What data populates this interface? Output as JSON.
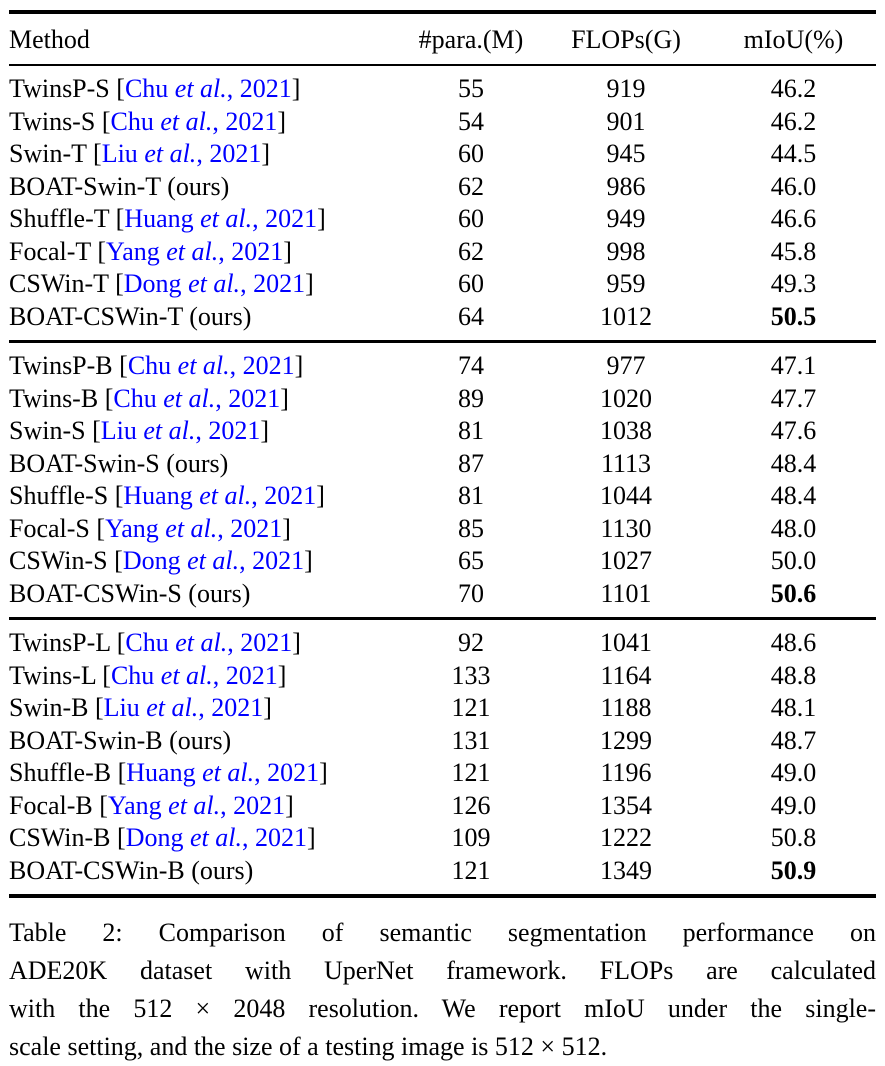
{
  "page": {
    "background_color": "#ffffff",
    "text_color": "#000000",
    "citation_color": "#0000FF"
  },
  "table": {
    "columns": [
      "Method",
      "#para.(M)",
      "FLOPs(G)",
      "mIoU(%)"
    ],
    "groups": [
      {
        "rows": [
          {
            "name": "TwinsP-S",
            "cite": {
              "author": "Chu",
              "etal": "et al.",
              "year": "2021"
            },
            "para": "55",
            "flops": "919",
            "miou": "46.2",
            "miou_bold": false
          },
          {
            "name": "Twins-S",
            "cite": {
              "author": "Chu",
              "etal": "et al.",
              "year": "2021"
            },
            "para": "54",
            "flops": "901",
            "miou": "46.2",
            "miou_bold": false
          },
          {
            "name": "Swin-T",
            "cite": {
              "author": "Liu",
              "etal": "et al.",
              "year": "2021"
            },
            "para": "60",
            "flops": "945",
            "miou": "44.5",
            "miou_bold": false
          },
          {
            "name": "BOAT-Swin-T (ours)",
            "cite": null,
            "para": "62",
            "flops": "986",
            "miou": "46.0",
            "miou_bold": false
          },
          {
            "name": "Shuffle-T",
            "cite": {
              "author": "Huang",
              "etal": "et al.",
              "year": "2021"
            },
            "para": "60",
            "flops": "949",
            "miou": "46.6",
            "miou_bold": false
          },
          {
            "name": "Focal-T",
            "cite": {
              "author": "Yang",
              "etal": "et al.",
              "year": "2021"
            },
            "para": "62",
            "flops": "998",
            "miou": "45.8",
            "miou_bold": false
          },
          {
            "name": "CSWin-T",
            "cite": {
              "author": "Dong",
              "etal": "et al.",
              "year": "2021"
            },
            "para": "60",
            "flops": "959",
            "miou": "49.3",
            "miou_bold": false
          },
          {
            "name": "BOAT-CSWin-T (ours)",
            "cite": null,
            "para": "64",
            "flops": "1012",
            "miou": "50.5",
            "miou_bold": true
          }
        ]
      },
      {
        "rows": [
          {
            "name": "TwinsP-B",
            "cite": {
              "author": "Chu",
              "etal": "et al.",
              "year": "2021"
            },
            "para": "74",
            "flops": "977",
            "miou": "47.1",
            "miou_bold": false
          },
          {
            "name": "Twins-B",
            "cite": {
              "author": "Chu",
              "etal": "et al.",
              "year": "2021"
            },
            "para": "89",
            "flops": "1020",
            "miou": "47.7",
            "miou_bold": false
          },
          {
            "name": "Swin-S",
            "cite": {
              "author": "Liu",
              "etal": "et al.",
              "year": "2021"
            },
            "para": "81",
            "flops": "1038",
            "miou": "47.6",
            "miou_bold": false
          },
          {
            "name": "BOAT-Swin-S (ours)",
            "cite": null,
            "para": "87",
            "flops": "1113",
            "miou": "48.4",
            "miou_bold": false
          },
          {
            "name": "Shuffle-S",
            "cite": {
              "author": "Huang",
              "etal": "et al.",
              "year": "2021"
            },
            "para": "81",
            "flops": "1044",
            "miou": "48.4",
            "miou_bold": false
          },
          {
            "name": "Focal-S",
            "cite": {
              "author": "Yang",
              "etal": "et al.",
              "year": "2021"
            },
            "para": "85",
            "flops": "1130",
            "miou": "48.0",
            "miou_bold": false
          },
          {
            "name": "CSWin-S",
            "cite": {
              "author": "Dong",
              "etal": "et al.",
              "year": "2021"
            },
            "para": "65",
            "flops": "1027",
            "miou": "50.0",
            "miou_bold": false
          },
          {
            "name": "BOAT-CSWin-S (ours)",
            "cite": null,
            "para": "70",
            "flops": "1101",
            "miou": "50.6",
            "miou_bold": true
          }
        ]
      },
      {
        "rows": [
          {
            "name": "TwinsP-L",
            "cite": {
              "author": "Chu",
              "etal": "et al.",
              "year": "2021"
            },
            "para": "92",
            "flops": "1041",
            "miou": "48.6",
            "miou_bold": false
          },
          {
            "name": "Twins-L",
            "cite": {
              "author": "Chu",
              "etal": "et al.",
              "year": "2021"
            },
            "para": "133",
            "flops": "1164",
            "miou": "48.8",
            "miou_bold": false
          },
          {
            "name": "Swin-B",
            "cite": {
              "author": "Liu",
              "etal": "et al.",
              "year": "2021"
            },
            "para": "121",
            "flops": "1188",
            "miou": "48.1",
            "miou_bold": false
          },
          {
            "name": "BOAT-Swin-B (ours)",
            "cite": null,
            "para": "131",
            "flops": "1299",
            "miou": "48.7",
            "miou_bold": false
          },
          {
            "name": "Shuffle-B",
            "cite": {
              "author": "Huang",
              "etal": "et al.",
              "year": "2021"
            },
            "para": "121",
            "flops": "1196",
            "miou": "49.0",
            "miou_bold": false
          },
          {
            "name": "Focal-B",
            "cite": {
              "author": "Yang",
              "etal": "et al.",
              "year": "2021"
            },
            "para": "126",
            "flops": "1354",
            "miou": "49.0",
            "miou_bold": false
          },
          {
            "name": "CSWin-B",
            "cite": {
              "author": "Dong",
              "etal": "et al.",
              "year": "2021"
            },
            "para": "109",
            "flops": "1222",
            "miou": "50.8",
            "miou_bold": false
          },
          {
            "name": "BOAT-CSWin-B (ours)",
            "cite": null,
            "para": "121",
            "flops": "1349",
            "miou": "50.9",
            "miou_bold": true
          }
        ]
      }
    ]
  },
  "caption": {
    "lines": [
      "Table 2: Comparison of semantic segmentation performance on",
      "ADE20K dataset with UperNet framework. FLOPs are calculated",
      "with the 512 × 2048 resolution. We report mIoU under the single-",
      "scale setting, and the size of a testing image is 512 × 512."
    ]
  }
}
